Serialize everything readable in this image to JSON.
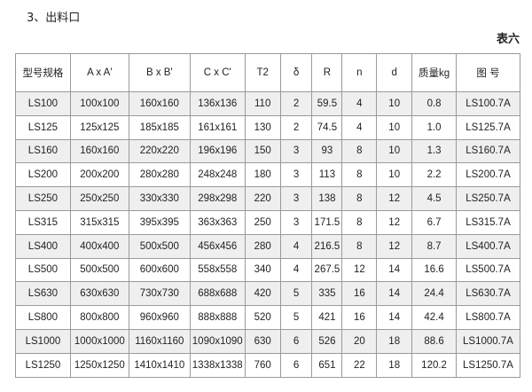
{
  "title": "3、出料口",
  "table_no": "表六",
  "headers": [
    "型号规格",
    "A x A'",
    "B x B'",
    "C x C'",
    "T2",
    "δ",
    "R",
    "n",
    "d",
    "质量kg",
    "图 号"
  ],
  "rows": [
    [
      "LS100",
      "100x100",
      "160x160",
      "136x136",
      "110",
      "2",
      "59.5",
      "4",
      "10",
      "0.8",
      "LS100.7A"
    ],
    [
      "LS125",
      "125x125",
      "185x185",
      "161x161",
      "130",
      "2",
      "74.5",
      "4",
      "10",
      "1.0",
      "LS125.7A"
    ],
    [
      "LS160",
      "160x160",
      "220x220",
      "196x196",
      "150",
      "3",
      "93",
      "8",
      "10",
      "1.3",
      "LS160.7A"
    ],
    [
      "LS200",
      "200x200",
      "280x280",
      "248x248",
      "180",
      "3",
      "113",
      "8",
      "10",
      "2.2",
      "LS200.7A"
    ],
    [
      "LS250",
      "250x250",
      "330x330",
      "298x298",
      "220",
      "3",
      "138",
      "8",
      "12",
      "4.5",
      "LS250.7A"
    ],
    [
      "LS315",
      "315x315",
      "395x395",
      "363x363",
      "250",
      "3",
      "171.5",
      "8",
      "12",
      "6.7",
      "LS315.7A"
    ],
    [
      "LS400",
      "400x400",
      "500x500",
      "456x456",
      "280",
      "4",
      "216.5",
      "8",
      "12",
      "8.7",
      "LS400.7A"
    ],
    [
      "LS500",
      "500x500",
      "600x600",
      "558x558",
      "340",
      "4",
      "267.5",
      "12",
      "14",
      "16.6",
      "LS500.7A"
    ],
    [
      "LS630",
      "630x630",
      "730x730",
      "688x688",
      "420",
      "5",
      "335",
      "16",
      "14",
      "24.4",
      "LS630.7A"
    ],
    [
      "LS800",
      "800x800",
      "960x960",
      "888x888",
      "520",
      "5",
      "421",
      "16",
      "14",
      "42.4",
      "LS800.7A"
    ],
    [
      "LS1000",
      "1000x1000",
      "1160x1160",
      "1090x1090",
      "630",
      "6",
      "526",
      "20",
      "18",
      "88.6",
      "LS1000.7A"
    ],
    [
      "LS1250",
      "1250x1250",
      "1410x1410",
      "1338x1338",
      "760",
      "6",
      "651",
      "22",
      "18",
      "120.2",
      "LS1250.7A"
    ]
  ]
}
